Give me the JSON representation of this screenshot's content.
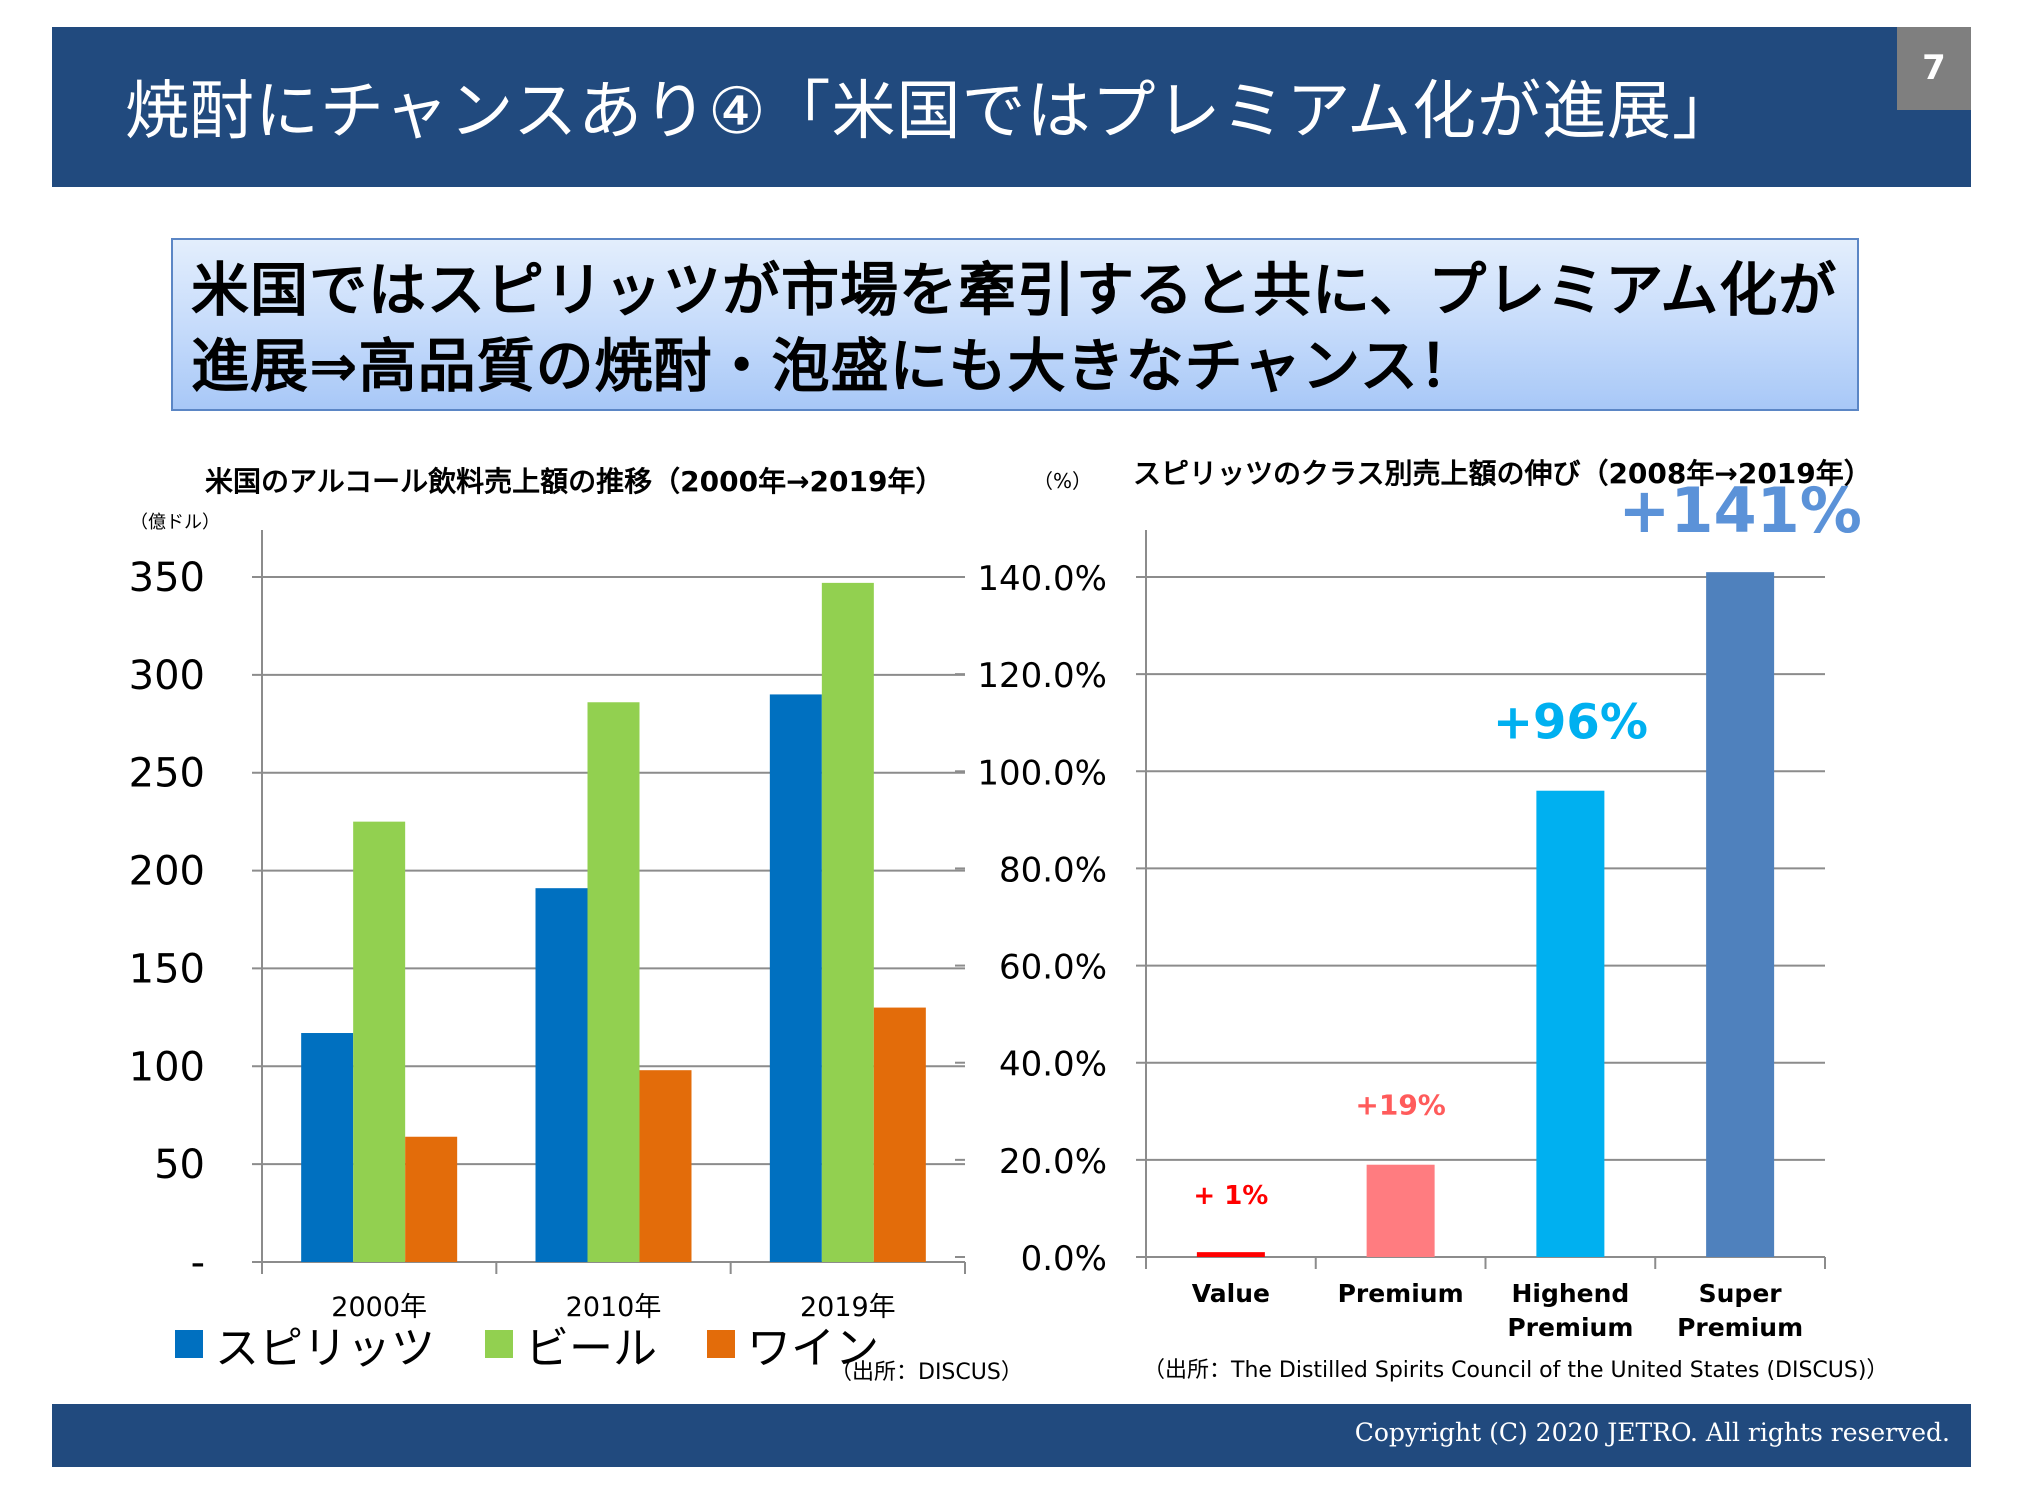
{
  "header": {
    "title": "焼酎にチャンスあり④「米国ではプレミアム化が進展」",
    "page_number": "7"
  },
  "callout": {
    "line1": "米国ではスピリッツが市場を牽引すると共に、プレミアム化が",
    "line2": "進展⇒高品質の焼酎・泡盛にも大きなチャンス！"
  },
  "footer": {
    "copyright": "Copyright (C) 2020 JETRO. All rights reserved."
  },
  "chart_data": [
    {
      "type": "bar",
      "title": "米国のアルコール飲料売上額の推移（2000年→2019年）",
      "ylabel": "（億ドル）",
      "xlabel": "",
      "categories": [
        "2000年",
        "2010年",
        "2019年"
      ],
      "series": [
        {
          "name": "スピリッツ",
          "color": "#0070C0",
          "values": [
            117,
            191,
            290
          ]
        },
        {
          "name": "ビール",
          "color": "#92D050",
          "values": [
            225,
            286,
            347
          ]
        },
        {
          "name": "ワイン",
          "color": "#E36C0A",
          "values": [
            64,
            98,
            130
          ]
        }
      ],
      "ylim": [
        0,
        350
      ],
      "yticks": [
        0,
        50,
        100,
        150,
        200,
        250,
        300,
        350
      ],
      "ytick_labels": [
        "-",
        "50",
        "100",
        "150",
        "200",
        "250",
        "300",
        "350"
      ],
      "grid": true,
      "legend": "bottom",
      "source": "（出所：DISCUS）"
    },
    {
      "type": "bar",
      "title": "スピリッツのクラス別売上額の伸び（2008年→2019年）",
      "ylabel": "（%）",
      "xlabel": "",
      "categories": [
        "Value",
        "Premium",
        "Highend Premium",
        "Super Premium"
      ],
      "category_lines": [
        [
          "Value"
        ],
        [
          "Premium"
        ],
        [
          "Highend",
          "Premium"
        ],
        [
          "Super",
          "Premium"
        ]
      ],
      "values": [
        1,
        19,
        96,
        141
      ],
      "bar_colors": [
        "#FF0000",
        "#FF7C80",
        "#00B0F0",
        "#4F81BD"
      ],
      "data_labels": [
        "+ 1%",
        "+19%",
        "+96%",
        "+141%"
      ],
      "data_label_colors": [
        "#FF0000",
        "#FF5B5B",
        "#00B0F0",
        "#5B92D8"
      ],
      "ylim": [
        0,
        150
      ],
      "yticks": [
        0,
        20,
        40,
        60,
        80,
        100,
        120,
        140
      ],
      "ytick_labels": [
        "0.0%",
        "20.0%",
        "40.0%",
        "60.0%",
        "80.0%",
        "100.0%",
        "120.0%",
        "140.0%"
      ],
      "grid": true,
      "legend": "none",
      "source": "（出所：The Distilled Spirits Council of the United States (DISCUS)）"
    }
  ]
}
